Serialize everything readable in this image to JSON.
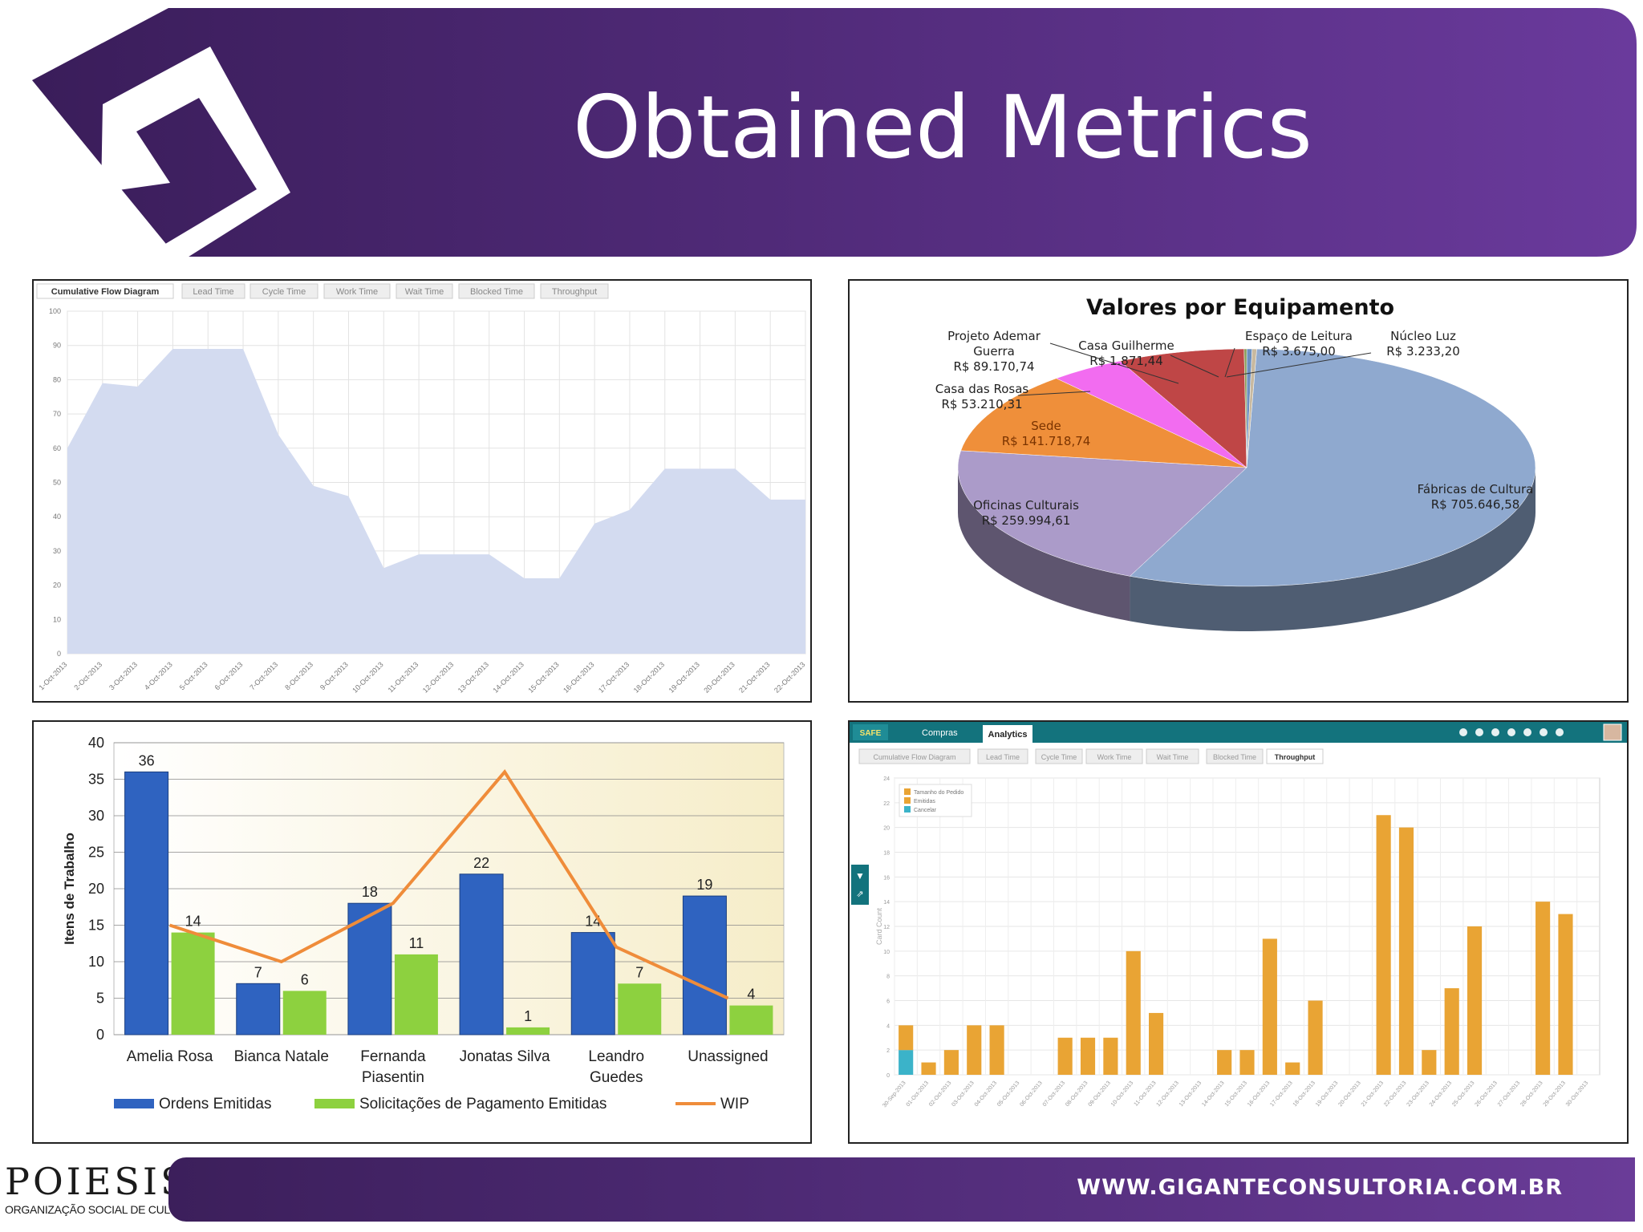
{
  "slide": {
    "title": "Obtained Metrics",
    "footer_url": "WWW.GIGANTECONSULTORIA.COM.BR",
    "logo_text": "POIESIS",
    "logo_subtitle": "ORGANIZAÇÃO SOCIAL DE CULTURA",
    "colors": {
      "banner_start": "#3a1d5a",
      "banner_end": "#6a3a9c",
      "chevron_fill": "#ffffff"
    }
  },
  "cfd": {
    "tabs": [
      "Cumulative Flow Diagram",
      "Lead Time",
      "Cycle Time",
      "Work Time",
      "Wait Time",
      "Blocked Time",
      "Throughput"
    ],
    "active_tab": 0
  },
  "pie": {
    "title": "Valores por Equipamento",
    "slices": [
      {
        "label": "Fábricas de Cultura",
        "value": "R$ 705.646,58",
        "color": "#8fa9cf"
      },
      {
        "label": "Oficinas Culturais",
        "value": "R$ 259.994,61",
        "color": "#ab9bc9"
      },
      {
        "label": "Sede",
        "value": "R$ 141.718,74",
        "color": "#ef8f3a"
      },
      {
        "label": "Casa das Rosas",
        "value": "R$ 53.210,31",
        "color": "#f26cf0"
      },
      {
        "label": "Projeto Ademar Guerra",
        "value": "R$ 89.170,74",
        "color": "#bf4646"
      },
      {
        "label": "Casa Guilherme",
        "value": "R$ 1.871,44",
        "color": "#8a9e5a"
      },
      {
        "label": "Espaço de Leitura",
        "value": "R$ 3.675,00",
        "color": "#6b8fc0"
      },
      {
        "label": "Núcleo Luz",
        "value": "R$ 3.233,20",
        "color": "#c8b9a0"
      }
    ]
  },
  "tp": {
    "nav": [
      "Compras",
      "Analytics"
    ],
    "tabs": [
      "Cumulative Flow Diagram",
      "Lead Time",
      "Cycle Time",
      "Work Time",
      "Wait Time",
      "Blocked Time",
      "Throughput"
    ],
    "active_tab": 6,
    "legend": [
      "Tamanho do Pedido",
      "Emitidas",
      "Cancelar"
    ],
    "ylabel": "Card Count"
  },
  "chart_data": [
    {
      "type": "area",
      "title": "",
      "xlabel": "",
      "ylabel": "",
      "ylim": [
        0,
        100
      ],
      "yticks": [
        0,
        10,
        20,
        30,
        40,
        50,
        60,
        70,
        80,
        90,
        100
      ],
      "x": [
        "1-Oct-2013",
        "2-Oct-2013",
        "3-Oct-2013",
        "4-Oct-2013",
        "5-Oct-2013",
        "6-Oct-2013",
        "7-Oct-2013",
        "8-Oct-2013",
        "9-Oct-2013",
        "10-Oct-2013",
        "11-Oct-2013",
        "12-Oct-2013",
        "13-Oct-2013",
        "14-Oct-2013",
        "15-Oct-2013",
        "16-Oct-2013",
        "17-Oct-2013",
        "18-Oct-2013",
        "19-Oct-2013",
        "20-Oct-2013",
        "21-Oct-2013",
        "22-Oct-2013"
      ],
      "series": [
        {
          "values": [
            60,
            79,
            78,
            89,
            89,
            89,
            64,
            49,
            46,
            25,
            29,
            29,
            29,
            22,
            22,
            38,
            42,
            54,
            54,
            54,
            45,
            45
          ]
        }
      ],
      "grid": true,
      "color": "#d3dbf0"
    },
    {
      "type": "pie",
      "title": "Valores por Equipamento",
      "categories": [
        "Fábricas de Cultura",
        "Oficinas Culturais",
        "Sede",
        "Casa das Rosas",
        "Projeto Ademar Guerra",
        "Casa Guilherme",
        "Espaço de Leitura",
        "Núcleo Luz"
      ],
      "values": [
        705646.58,
        259994.61,
        141718.74,
        53210.31,
        89170.74,
        1871.44,
        3675.0,
        3233.2
      ]
    },
    {
      "type": "bar",
      "title": "",
      "xlabel": "",
      "ylabel": "Itens de Trabalho",
      "ylim": [
        0,
        40
      ],
      "yticks": [
        0,
        5,
        10,
        15,
        20,
        25,
        30,
        35,
        40
      ],
      "categories": [
        "Amelia Rosa",
        "Bianca Natale",
        "Fernanda Piasentin",
        "Jonatas Silva",
        "Leandro Guedes",
        "Unassigned"
      ],
      "category_lines": [
        [
          "Amelia Rosa"
        ],
        [
          "Bianca Natale"
        ],
        [
          "Fernanda",
          "Piasentin"
        ],
        [
          "Jonatas Silva"
        ],
        [
          "Leandro",
          "Guedes"
        ],
        [
          "Unassigned"
        ]
      ],
      "series": [
        {
          "name": "Ordens Emitidas",
          "values": [
            36,
            7,
            18,
            22,
            14,
            19
          ],
          "color": "#2f63c0"
        },
        {
          "name": "Solicitações de Pagamento Emitidas",
          "values": [
            14,
            6,
            11,
            1,
            7,
            4
          ],
          "color": "#8dd13f"
        },
        {
          "name": "WIP",
          "values": [
            15,
            10,
            18,
            36,
            12,
            5
          ],
          "color": "#ef8c3a",
          "type": "line"
        }
      ],
      "legend": "bottom"
    },
    {
      "type": "bar",
      "title": "",
      "xlabel": "",
      "ylabel": "Card Count",
      "ylim": [
        0,
        24
      ],
      "stacked": true,
      "categories": [
        "30-Sep-2013",
        "01-Oct-2013",
        "02-Oct-2013",
        "03-Oct-2013",
        "04-Oct-2013",
        "05-Oct-2013",
        "06-Oct-2013",
        "07-Oct-2013",
        "08-Oct-2013",
        "09-Oct-2013",
        "10-Oct-2013",
        "11-Oct-2013",
        "12-Oct-2013",
        "13-Oct-2013",
        "14-Oct-2013",
        "15-Oct-2013",
        "16-Oct-2013",
        "17-Oct-2013",
        "18-Oct-2013",
        "19-Oct-2013",
        "20-Oct-2013",
        "21-Oct-2013",
        "22-Oct-2013",
        "23-Oct-2013",
        "24-Oct-2013",
        "25-Oct-2013",
        "26-Oct-2013",
        "27-Oct-2013",
        "28-Oct-2013",
        "29-Oct-2013",
        "30-Oct-2013"
      ],
      "series": [
        {
          "name": "Cancelar",
          "values": [
            2,
            0,
            0,
            0,
            0,
            0,
            0,
            0,
            0,
            0,
            0,
            0,
            0,
            0,
            0,
            0,
            0,
            0,
            0,
            0,
            0,
            0,
            0,
            0,
            0,
            0,
            0,
            0,
            0,
            0,
            0
          ],
          "color": "#3bb3c9"
        },
        {
          "name": "Emitidas",
          "values": [
            2,
            1,
            2,
            4,
            4,
            0,
            0,
            3,
            3,
            3,
            10,
            5,
            0,
            0,
            2,
            2,
            11,
            1,
            6,
            0,
            0,
            21,
            20,
            2,
            7,
            12,
            0,
            0,
            14,
            13,
            0
          ],
          "color": "#e9a434"
        }
      ],
      "legend": "top-left",
      "grid": true
    }
  ]
}
